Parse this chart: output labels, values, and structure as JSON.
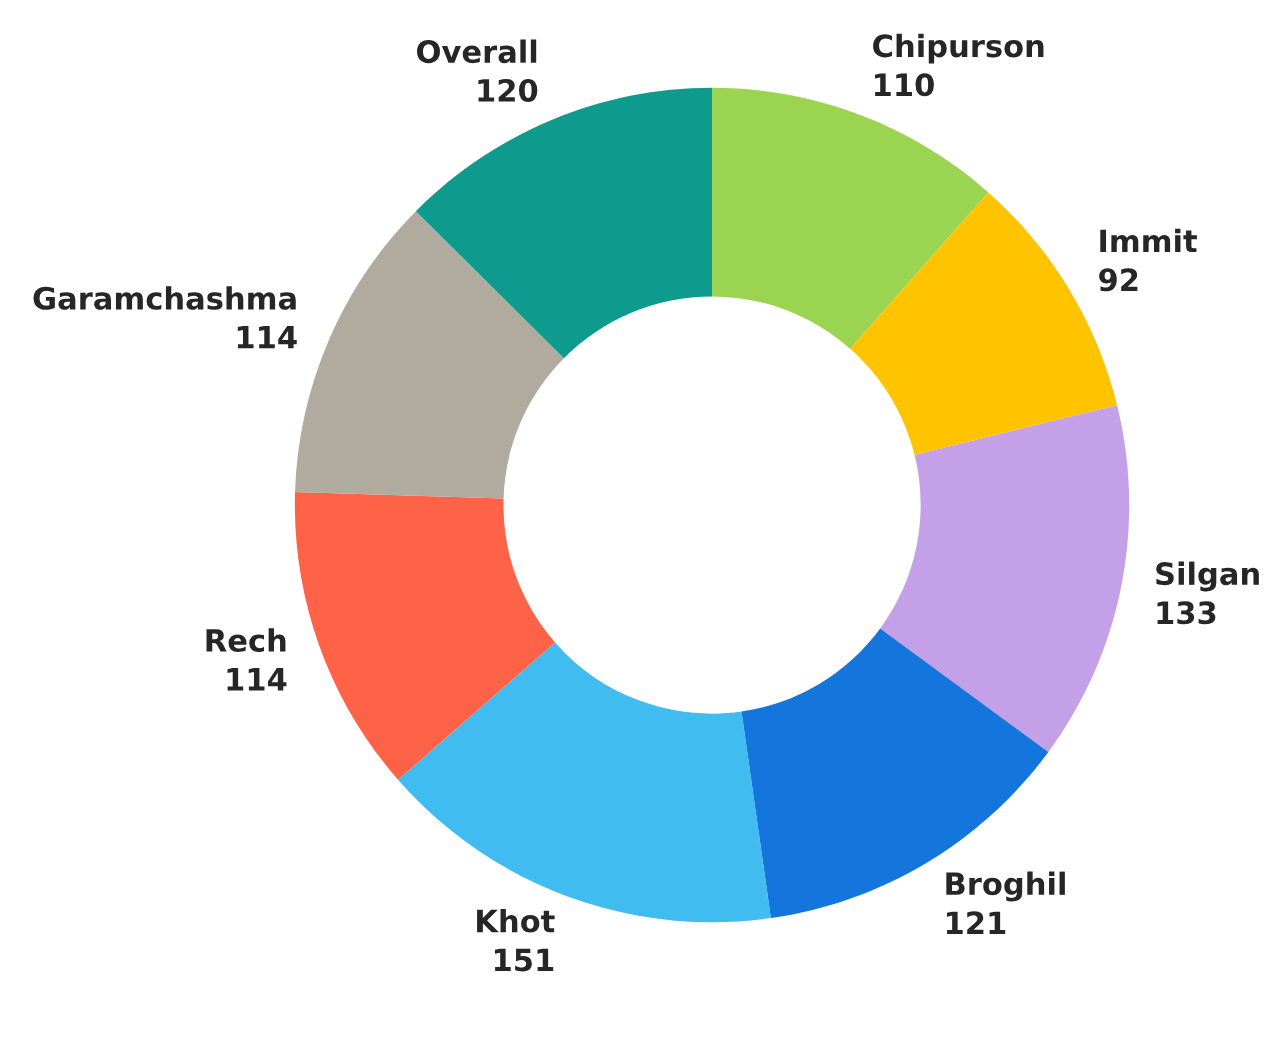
{
  "chart_data": {
    "type": "donut",
    "categories": [
      "Chipurson",
      "Immit",
      "Silgan",
      "Broghil",
      "Khot",
      "Rech",
      "Garamchashma",
      "Overall"
    ],
    "values": [
      110,
      92,
      133,
      121,
      151,
      114,
      114,
      120
    ],
    "colors": [
      "#9bd450",
      "#ffc300",
      "#c4a0e8",
      "#1476dc",
      "#40bcf0",
      "#ff6347",
      "#b0ab9e",
      "#0f9a8e"
    ],
    "data_labels": true,
    "legend": false
  }
}
